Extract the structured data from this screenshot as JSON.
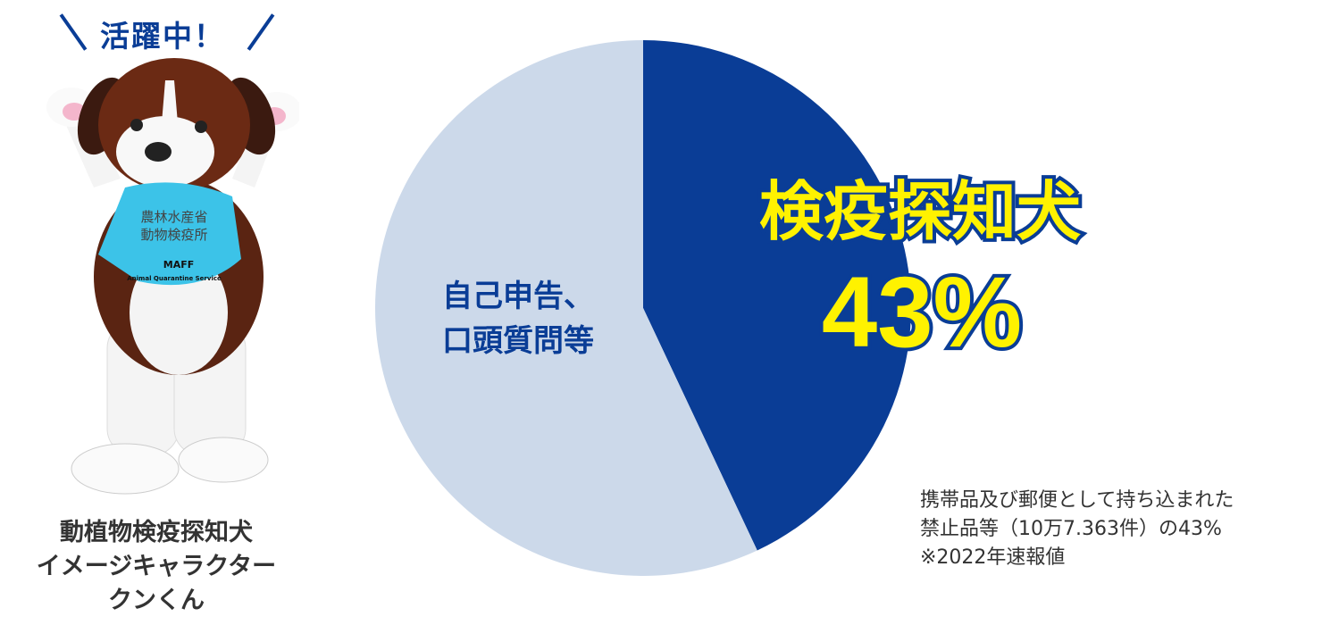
{
  "mascot": {
    "headline": "活躍中！",
    "caption_lines": [
      "動植物検疫探知犬",
      "イメージキャラクター",
      "クンくん"
    ],
    "bib_text": [
      "農林水産省",
      "動物検疫所",
      "MAFF",
      "Animal Quarantine Service"
    ]
  },
  "note_lines": [
    "携帯品及び郵便として持ち込まれた",
    "禁止品等（10万7.363件）の43%",
    "※2022年速報値"
  ],
  "chart_data": {
    "type": "pie",
    "start": "top",
    "direction": "clockwise",
    "slices": [
      {
        "label": "検疫探知犬",
        "value": 43,
        "value_label": "43%",
        "color": "#0a3d96",
        "label_color": "#fff200"
      },
      {
        "label_lines": [
          "自己申告、",
          "口頭質問等"
        ],
        "value": 57,
        "color": "#ccd9ea",
        "label_color": "#0a3d96"
      }
    ]
  }
}
